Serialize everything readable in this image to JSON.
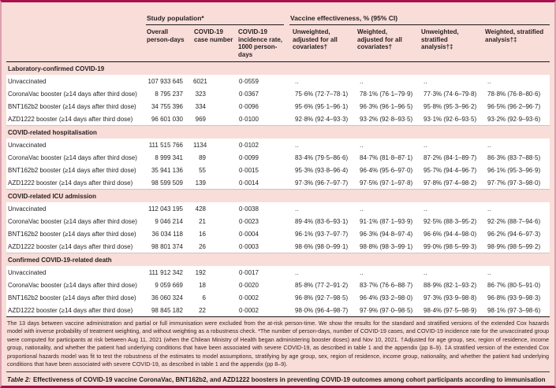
{
  "colors": {
    "background_pink": "#f9ddd9",
    "row_white": "#ffffff",
    "frame_accent": "#a8104e",
    "rule_black": "#1a1a1a"
  },
  "table": {
    "group_headers": [
      "Study population*",
      "Vaccine effectiveness, % (95% CI)"
    ],
    "columns": [
      "Overall person-days",
      "COVID-19 case number",
      "COVID-19 incidence rate, 1000 person-days",
      "Unweighted, adjusted for all covariates†",
      "Weighted, adjusted for all covariates†",
      "Unweighted, stratified analysis†‡",
      "Weighted, stratified analysis†‡"
    ],
    "sections": [
      {
        "title": "Laboratory-confirmed COVID-19",
        "rows": [
          {
            "label": "Unvaccinated",
            "person_days": "107 933 645",
            "cases": "6021",
            "incidence": "0·0559",
            "ve": [
              "..",
              "..",
              "..",
              ".."
            ]
          },
          {
            "label": "CoronaVac booster (≥14 days after third dose)",
            "person_days": "8 795 237",
            "cases": "323",
            "incidence": "0·0367",
            "ve": [
              "75·6% (72·7–78·1)",
              "78·1% (76·1–79·9)",
              "77·3% (74·6–79·8)",
              "78·8% (76·8–80·6)"
            ]
          },
          {
            "label": "BNT162b2 booster (≥14 days after third dose)",
            "person_days": "34 755 396",
            "cases": "334",
            "incidence": "0·0096",
            "ve": [
              "95·6% (95·1–96·1)",
              "96·3% (96·1–96·5)",
              "95·8% (95·3–96·2)",
              "96·5% (96·2–96·7)"
            ]
          },
          {
            "label": "AZD1222 booster (≥14 days after third dose)",
            "person_days": "96 601 030",
            "cases": "969",
            "incidence": "0·0100",
            "ve": [
              "92·8% (92·4–93·3)",
              "93·2% (92·8–93·5)",
              "93·1% (92·6–93·5)",
              "93·2% (92·9–93·6)"
            ]
          }
        ]
      },
      {
        "title": "COVID-related hospitalisation",
        "rows": [
          {
            "label": "Unvaccinated",
            "person_days": "111 515 766",
            "cases": "1134",
            "incidence": "0·0102",
            "ve": [
              "..",
              "..",
              "..",
              ".."
            ]
          },
          {
            "label": "CoronaVac booster (≥14 days after third dose)",
            "person_days": "8 999 341",
            "cases": "89",
            "incidence": "0·0099",
            "ve": [
              "83·4% (79·5–86·6)",
              "84·7% (81·8–87·1)",
              "87·2% (84·1–89·7)",
              "86·3% (83·7–88·5)"
            ]
          },
          {
            "label": "BNT162b2 booster (≥14 days after third dose)",
            "person_days": "35 941 136",
            "cases": "55",
            "incidence": "0·0015",
            "ve": [
              "95·3% (93·8–96·4)",
              "96·4% (95·6–97·0)",
              "95·7% (94·4–96·7)",
              "96·1% (95·3–96·9)"
            ]
          },
          {
            "label": "AZD1222 booster (≥14 days after third dose)",
            "person_days": "98 599 509",
            "cases": "139",
            "incidence": "0·0014",
            "ve": [
              "97·3% (96·7–97·7)",
              "97·5% (97·1–97·8)",
              "97·8% (97·4–98·2)",
              "97·7% (97·3–98·0)"
            ]
          }
        ]
      },
      {
        "title": "COVID-related ICU admission",
        "rows": [
          {
            "label": "Unvaccinated",
            "person_days": "112 043 195",
            "cases": "428",
            "incidence": "0·0038",
            "ve": [
              "..",
              "..",
              "..",
              ".."
            ]
          },
          {
            "label": "CoronaVac booster (≥14 days after third dose)",
            "person_days": "9 046 214",
            "cases": "21",
            "incidence": "0·0023",
            "ve": [
              "89·4% (83·6–93·1)",
              "91·1% (87·1–93·9)",
              "92·5% (88·3–95·2)",
              "92·2% (88·7–94·6)"
            ]
          },
          {
            "label": "BNT162b2 booster (≥14 days after third dose)",
            "person_days": "36 034 118",
            "cases": "16",
            "incidence": "0·0004",
            "ve": [
              "96·1% (93·7–97·7)",
              "96·3% (94·8–97·4)",
              "96·6% (94·4–98·0)",
              "96·2% (94·6–97·3)"
            ]
          },
          {
            "label": "AZD1222 booster (≥14 days after third dose)",
            "person_days": "98 801 374",
            "cases": "26",
            "incidence": "0·0003",
            "ve": [
              "98·6% (98·0–99·1)",
              "98·8% (98·3–99·1)",
              "99·0% (98·5–99·3)",
              "98·9% (98·5–99·2)"
            ]
          }
        ]
      },
      {
        "title": "Confirmed COVID-19-related death",
        "rows": [
          {
            "label": "Unvaccinated",
            "person_days": "111 912 342",
            "cases": "192",
            "incidence": "0·0017",
            "ve": [
              "..",
              "..",
              "..",
              ".."
            ]
          },
          {
            "label": "CoronaVac booster (≥14 days after third dose)",
            "person_days": "9 059 669",
            "cases": "18",
            "incidence": "0·0020",
            "ve": [
              "85·8% (77·2–91·2)",
              "83·7% (76·6–88·7)",
              "88·9% (82·1–93·2)",
              "86·7% (80·5–91·0)"
            ]
          },
          {
            "label": "BNT162b2 booster (≥14 days after third dose)",
            "person_days": "36 060 324",
            "cases": "6",
            "incidence": "0·0002",
            "ve": [
              "96·8% (92·7–98·5)",
              "96·4% (93·2–98·0)",
              "97·3% (93·9–98·8)",
              "96·8% (93·9–98·3)"
            ]
          },
          {
            "label": "AZD1222 booster (≥14 days after third dose)",
            "person_days": "98 845 182",
            "cases": "22",
            "incidence": "0·0002",
            "ve": [
              "98·0% (96·4–98·7)",
              "97·9% (97·0–98·5)",
              "98·4% (97·5–98·9)",
              "98·1% (97·3–98·6)"
            ]
          }
        ]
      }
    ]
  },
  "footnote": "The 13 days between vaccine administration and partial or full immunisation were excluded from the at-risk person-time. We show the results for the standard and stratified versions of the extended Cox hazards model with inverse probability of treatment weighting, and without weighting as a robustness check. *The number of person-days, number of COVID-19 cases, and COVID-19 incidence rate for the unvaccinated group were computed for participants at risk between Aug 11, 2021 (when the Chilean Ministry of Health began administering booster doses) and Nov 10, 2021. †Adjusted for age group, sex, region of residence, income group, nationality, and whether the patient had underlying conditions that have been associated with severe COVID-19, as described in table 1 and the appendix (pp 8–9). ‡A stratified version of the extended Cox proportional hazards model was fit to test the robustness of the estimates to model assumptions, stratifying by age group, sex, region of residence, income group, nationality, and whether the patient had underlying conditions that have been associated with severe COVID-19, as described in table 1 and the appendix (pp 8–9).",
  "caption": {
    "label": "Table 2:",
    "text": "Effectiveness of COVID-19 vaccine CoronaVac, BNT162b2, and AZD1222 boosters in preventing COVID-19 outcomes among cohort participants according to immunisation status, Feb 2 to Nov 10, 2021*"
  }
}
